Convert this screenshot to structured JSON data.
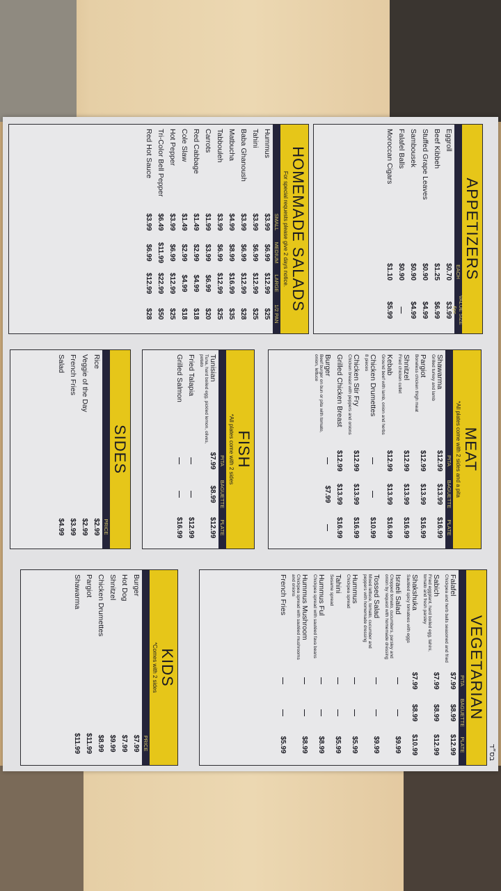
{
  "hebrew_mark": "בס״ד",
  "colors": {
    "yellow": "#e6c619",
    "navy": "#24243a",
    "paper": "#e2e2e4"
  },
  "sections": {
    "appetizers": {
      "title": "APPETIZERS",
      "subtitle": "",
      "columns": [
        "EACH",
        "VALUE SIZE 6pc"
      ],
      "items": [
        {
          "name": "Eggroll",
          "prices": [
            "$0.70",
            "$3.99"
          ]
        },
        {
          "name": "Beef Kibbeh",
          "prices": [
            "$1.25",
            "$6.99"
          ]
        },
        {
          "name": "Stuffed Grape Leaves",
          "prices": [
            "$0.90",
            "$4.99"
          ]
        },
        {
          "name": "Sambousek",
          "prices": [
            "$0.90",
            "$4.99"
          ]
        },
        {
          "name": "Falafel Balls",
          "prices": [
            "$0.90",
            "—"
          ]
        },
        {
          "name": "Moroccan Cigars",
          "prices": [
            "$1.10",
            "$5.99"
          ]
        }
      ]
    },
    "salads": {
      "title": "HOMEMADE SALADS",
      "subtitle": "For special requests please give 2 days notice.",
      "columns": [
        "SMALL",
        "MEDIUM",
        "LARGE",
        "1/2 PAN"
      ],
      "items": [
        {
          "name": "Hummus",
          "prices": [
            "$3.99",
            "$6.99",
            "$12.99",
            "$25"
          ]
        },
        {
          "name": "Tahini",
          "prices": [
            "$3.99",
            "$6.99",
            "$12.99",
            "$25"
          ]
        },
        {
          "name": "Baba Ghanoush",
          "prices": [
            "$3.99",
            "$6.99",
            "$12.99",
            "$28"
          ]
        },
        {
          "name": "Matbucha",
          "prices": [
            "$4.99",
            "$8.99",
            "$16.99",
            "$35"
          ]
        },
        {
          "name": "Tabbouleh",
          "prices": [
            "$3.99",
            "$6.99",
            "$12.99",
            "$25"
          ]
        },
        {
          "name": "Carrots",
          "prices": [
            "$1.99",
            "$3.99",
            "$6.99",
            "$20"
          ]
        },
        {
          "name": "Red Cabbage",
          "prices": [
            "$1.49",
            "$2.99",
            "$4.99",
            "$18"
          ]
        },
        {
          "name": "Cole Slaw",
          "prices": [
            "$1.49",
            "$2.99",
            "$4.99",
            "$18"
          ]
        },
        {
          "name": "Hot Pepper",
          "prices": [
            "$3.99",
            "$6.99",
            "$12.99",
            "$25"
          ]
        },
        {
          "name": "Tri-Color Bell Pepper",
          "prices": [
            "$6.49",
            "$11.99",
            "$22.99",
            "$50"
          ]
        },
        {
          "name": "Red Hot Sauce",
          "prices": [
            "$3.99",
            "$6.99",
            "$12.99",
            "$28"
          ]
        }
      ]
    },
    "meat": {
      "title": "MEAT",
      "subtitle": "*All plates come with 2 sides and a pita",
      "columns": [
        "PITA",
        "BAGUETTE",
        "PLATE"
      ],
      "items": [
        {
          "name": "Shawarma",
          "desc": "Grilled turkey and lamb",
          "prices": [
            "$12.99",
            "$13.99",
            "$16.99"
          ]
        },
        {
          "name": "Pargiot",
          "desc": "Boneless chicken thigh meat",
          "prices": [
            "$12.99",
            "$13.99",
            "$16.99"
          ]
        },
        {
          "name": "Shnitzel",
          "desc": "Fried chicken cutlet",
          "prices": [
            "$12.99",
            "$13.99",
            "$16.99"
          ]
        },
        {
          "name": "Kebab",
          "desc": "Ground beef with lamb, onion and herbs",
          "prices": [
            "$12.99",
            "$13.99",
            "$16.99"
          ]
        },
        {
          "name": "Chicken Drumettes",
          "desc": "8 pieces",
          "prices": [
            "—",
            "—",
            "$10.99"
          ]
        },
        {
          "name": "Chicken Stir Fry",
          "desc": "Chicken breast with peppers and onions",
          "prices": [
            "$12.99",
            "$13.99",
            "$16.99"
          ]
        },
        {
          "name": "Grilled Chicken Breast",
          "prices": [
            "$12.99",
            "$13.99",
            "$16.99"
          ]
        },
        {
          "name": "Burger",
          "desc": "Beef burger on bun or pita with tomato, onion, lettuce",
          "prices": [
            "—",
            "$7.99",
            "—"
          ]
        }
      ]
    },
    "fish": {
      "title": "FISH",
      "subtitle": "*All plates come with 2 sides",
      "columns": [
        "PITA",
        "BAGUETTE",
        "PLATE"
      ],
      "items": [
        {
          "name": "Tunisian",
          "desc": "Tuna, hard boiled egg, pickled lemon, olives, potato",
          "prices": [
            "$7.99",
            "$8.99",
            "$12.99"
          ]
        },
        {
          "name": "Fried Talapia",
          "prices": [
            "—",
            "—",
            "$12.99"
          ]
        },
        {
          "name": "Grilled Salmon",
          "prices": [
            "—",
            "—",
            "$16.99"
          ]
        }
      ]
    },
    "sides": {
      "title": "SIDES",
      "subtitle": "",
      "columns": [
        "PRICE"
      ],
      "items": [
        {
          "name": "Rice",
          "prices": [
            "$2.99"
          ]
        },
        {
          "name": "Veggie of the Day",
          "prices": [
            "$2.99"
          ]
        },
        {
          "name": "French Fries",
          "prices": [
            "$3.99"
          ]
        },
        {
          "name": "Salad",
          "prices": [
            "$4.99"
          ]
        }
      ]
    },
    "vegetarian": {
      "title": "VEGETARIAN",
      "subtitle": "",
      "columns": [
        "PITA",
        "BAGUETTE",
        "PLATE"
      ],
      "items": [
        {
          "name": "Falafel",
          "desc": "Chickpea and herb balls seasoned and fried",
          "prices": [
            "$7.99",
            "$8.99",
            "$12.99"
          ]
        },
        {
          "name": "Sabich",
          "desc": "Fried eggplant, hard boiled egg, tahini, tomato and fresh parsley",
          "prices": [
            "$7.99",
            "$8.99",
            "$12.99"
          ]
        },
        {
          "name": "Shakshuka",
          "desc": "Sautéed spicy tomatoes with eggs",
          "prices": [
            "$7.99",
            "$8.99",
            "$10.99"
          ]
        },
        {
          "name": "Israeli Salad",
          "desc": "Chopped tomato, cucumbers, parsley and onion by request with homemade dressing",
          "prices": [
            "—",
            "—",
            "$9.99"
          ]
        },
        {
          "name": "Tossed Salad",
          "desc": "Mixed lettuce, tomato, cucumber and peppers with homemade dressing",
          "prices": [
            "—",
            "—",
            "$9.99"
          ]
        },
        {
          "name": "Hummus",
          "desc": "Chickpea spread",
          "prices": [
            "—",
            "—",
            "$5.99"
          ]
        },
        {
          "name": "Tahini",
          "desc": "Sesame spread",
          "prices": [
            "—",
            "—",
            "$5.99"
          ]
        },
        {
          "name": "Hummus Ful",
          "desc": "Chickpea spread with sautéed fava beans",
          "prices": [
            "—",
            "—",
            "$8.99"
          ]
        },
        {
          "name": "Hummus Mushroom",
          "desc": "Chickpea spread with sautéed mushrooms and onions",
          "prices": [
            "—",
            "—",
            "$8.99"
          ]
        },
        {
          "name": "French Fries",
          "prices": [
            "—",
            "—",
            "$5.99"
          ]
        }
      ]
    },
    "kids": {
      "title": "KIDS",
      "subtitle": "*Comes with 2 sides",
      "columns": [
        "PRICE"
      ],
      "items": [
        {
          "name": "Burger",
          "prices": [
            "$7.99"
          ]
        },
        {
          "name": "Hot Dog",
          "prices": [
            "$7.99"
          ]
        },
        {
          "name": "Shnitzel",
          "prices": [
            "$9.99"
          ]
        },
        {
          "name": "Chicken Drumettes",
          "prices": [
            "$8.99"
          ]
        },
        {
          "name": "Pargiot",
          "prices": [
            "$11.99"
          ]
        },
        {
          "name": "Shawarma",
          "prices": [
            "$11.99"
          ]
        }
      ]
    }
  }
}
